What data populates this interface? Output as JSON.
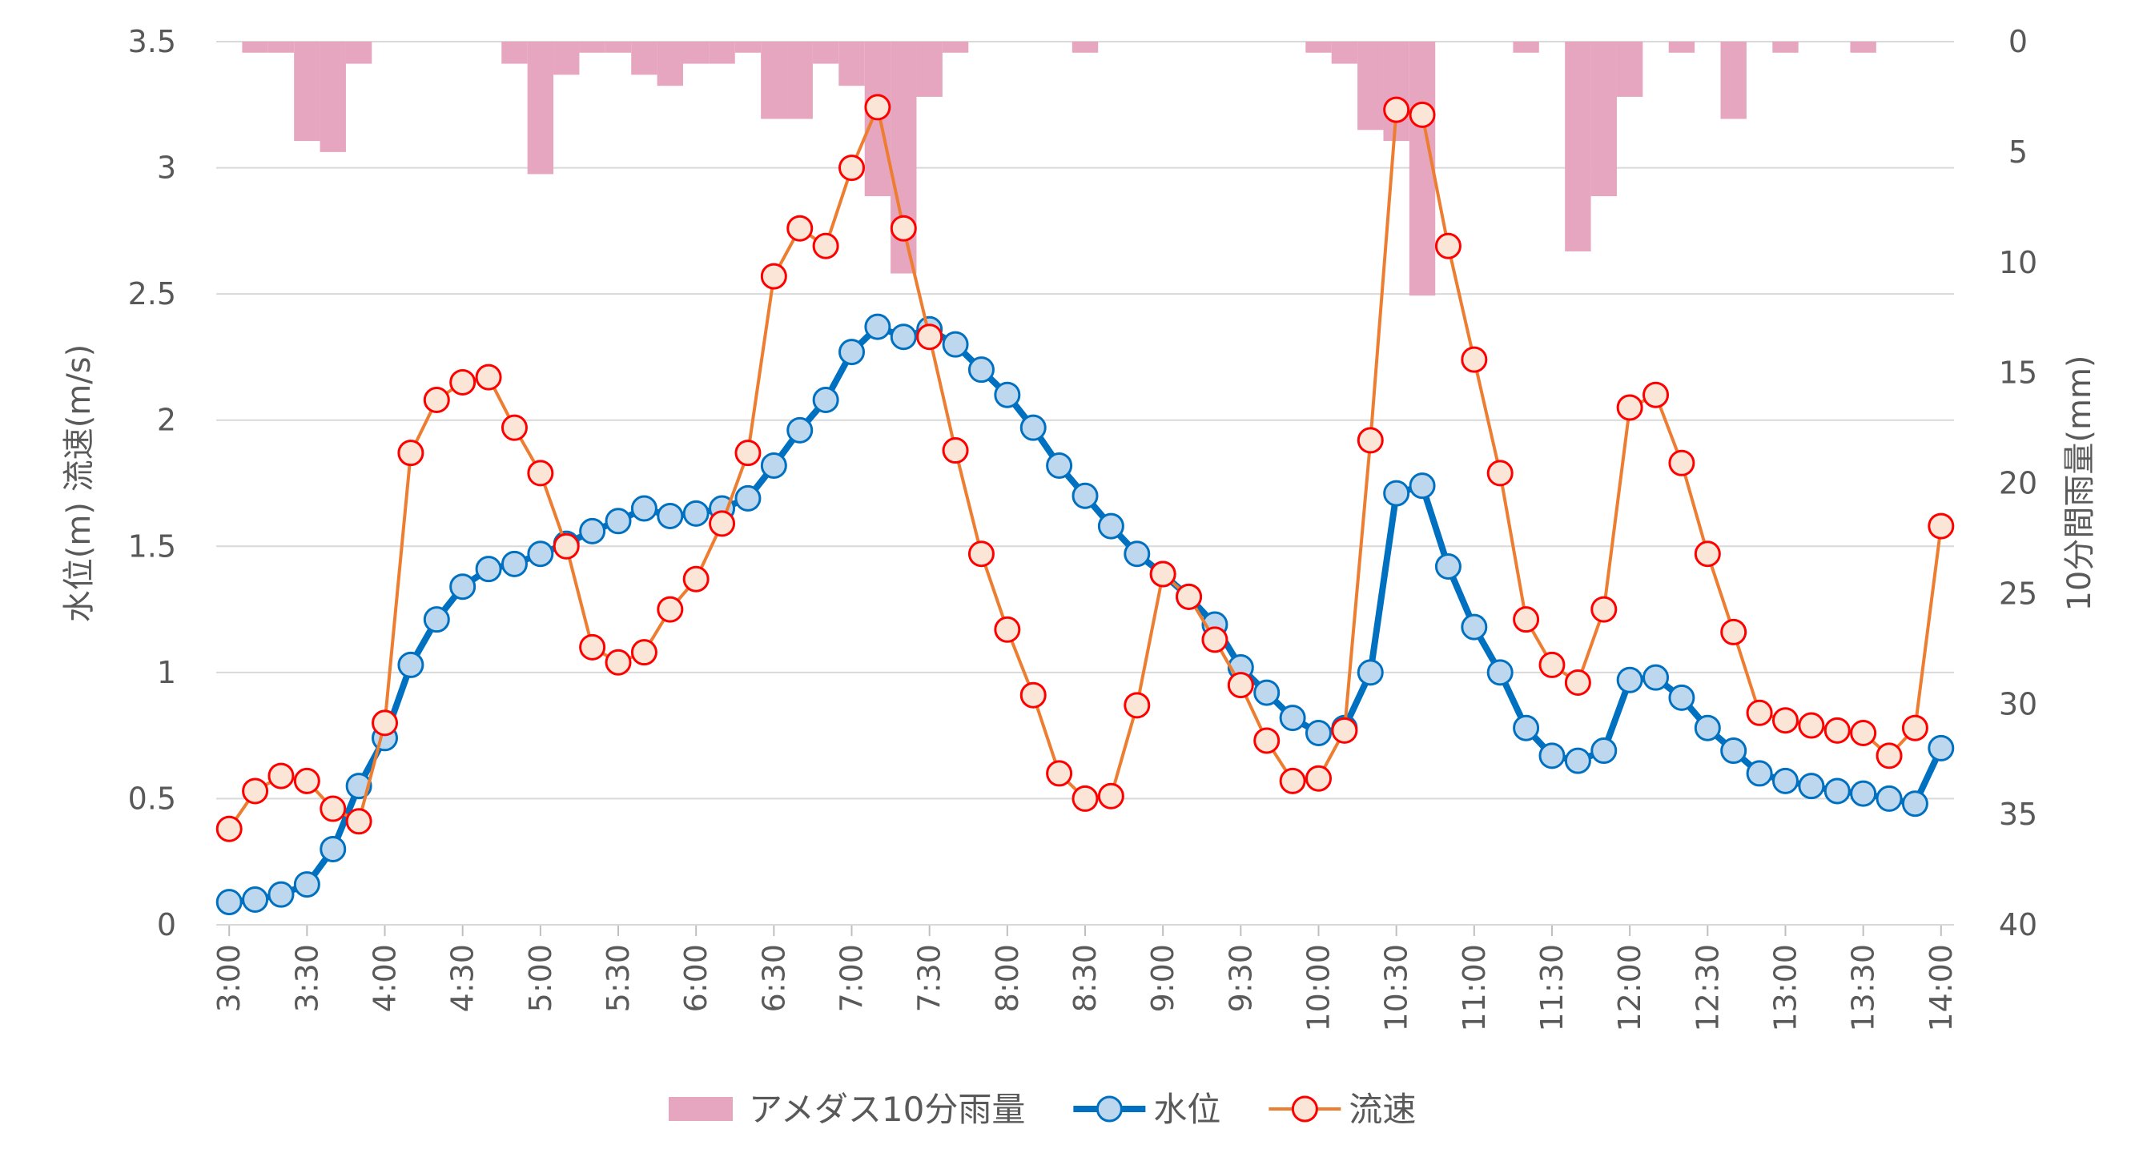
{
  "chart_data": {
    "type": "line",
    "x": [
      "3:00",
      "3:10",
      "3:20",
      "3:30",
      "3:40",
      "3:50",
      "4:00",
      "4:10",
      "4:20",
      "4:30",
      "4:40",
      "4:50",
      "5:00",
      "5:10",
      "5:20",
      "5:30",
      "5:40",
      "5:50",
      "6:00",
      "6:10",
      "6:20",
      "6:30",
      "6:40",
      "6:50",
      "7:00",
      "7:10",
      "7:20",
      "7:30",
      "7:40",
      "7:50",
      "8:00",
      "8:10",
      "8:20",
      "8:30",
      "8:40",
      "8:50",
      "9:00",
      "9:10",
      "9:20",
      "9:30",
      "9:40",
      "9:50",
      "10:00",
      "10:10",
      "10:20",
      "10:30",
      "10:40",
      "10:50",
      "11:00",
      "11:10",
      "11:20",
      "11:30",
      "11:40",
      "11:50",
      "12:00",
      "12:10",
      "12:20",
      "12:30",
      "12:40",
      "12:50",
      "13:00",
      "13:10",
      "13:20",
      "13:30",
      "13:40",
      "13:50",
      "14:00"
    ],
    "x_tick_labels": [
      "3:00",
      "3:30",
      "4:00",
      "4:30",
      "5:00",
      "5:30",
      "6:00",
      "6:30",
      "7:00",
      "7:30",
      "8:00",
      "8:30",
      "9:00",
      "9:30",
      "10:00",
      "10:30",
      "11:00",
      "11:30",
      "12:00",
      "12:30",
      "13:00",
      "13:30",
      "14:00"
    ],
    "y_left": {
      "label": "水位(m) 流速(m/s)",
      "ylim": [
        0,
        3.5
      ],
      "ticks": [
        "0",
        "0.5",
        "1",
        "1.5",
        "2",
        "2.5",
        "3",
        "3.5"
      ]
    },
    "y_right": {
      "label": "10分間雨量(mm)",
      "ylim": [
        0,
        40
      ],
      "reversed": true,
      "ticks": [
        "0",
        "5",
        "10",
        "15",
        "20",
        "25",
        "30",
        "35",
        "40"
      ]
    },
    "grid": "horizontal",
    "legend_position": "bottom",
    "series": [
      {
        "name": "アメダス10分雨量",
        "type": "bar",
        "axis": "right",
        "color": "#e6a6bf",
        "values": [
          0,
          0.5,
          0.5,
          4.5,
          5,
          1,
          0,
          0,
          0,
          0,
          0,
          1,
          6,
          1.5,
          0.5,
          0.5,
          1.5,
          2,
          1,
          1,
          0.5,
          3.5,
          3.5,
          1,
          2,
          7,
          10.5,
          2.5,
          0.5,
          0,
          0,
          0,
          0,
          0.5,
          0,
          0,
          0,
          0,
          0,
          0,
          0,
          0,
          0.5,
          1,
          4,
          4.5,
          11.5,
          0,
          0,
          0,
          0.5,
          0,
          9.5,
          7,
          2.5,
          0,
          0.5,
          0,
          3.5,
          0,
          0.5,
          0,
          0,
          0.5,
          0,
          0,
          0
        ]
      },
      {
        "name": "水位",
        "type": "line",
        "axis": "left",
        "color": "#0070c0",
        "marker_fill": "#bdd7ee",
        "values": [
          0.09,
          0.1,
          0.12,
          0.16,
          0.3,
          0.55,
          0.74,
          1.03,
          1.21,
          1.34,
          1.41,
          1.43,
          1.47,
          1.51,
          1.56,
          1.6,
          1.65,
          1.62,
          1.63,
          1.65,
          1.69,
          1.82,
          1.96,
          2.08,
          2.27,
          2.37,
          2.33,
          2.36,
          2.3,
          2.2,
          2.1,
          1.97,
          1.82,
          1.7,
          1.58,
          1.47,
          1.39,
          1.3,
          1.19,
          1.02,
          0.92,
          0.82,
          0.76,
          0.78,
          1.0,
          1.71,
          1.74,
          1.42,
          1.18,
          1.0,
          0.78,
          0.67,
          0.65,
          0.69,
          0.97,
          0.98,
          0.9,
          0.78,
          0.69,
          0.6,
          0.57,
          0.55,
          0.53,
          0.52,
          0.5,
          0.48,
          0.7
        ]
      },
      {
        "name": "流速",
        "type": "line",
        "axis": "left",
        "color": "#ed7d31",
        "marker_fill": "#fbe5d6",
        "marker_edge": "#ff0000",
        "values": [
          0.38,
          0.53,
          0.59,
          0.57,
          0.46,
          0.41,
          0.8,
          1.87,
          2.08,
          2.15,
          2.17,
          1.97,
          1.79,
          1.5,
          1.1,
          1.04,
          1.08,
          1.25,
          1.37,
          1.59,
          1.87,
          2.57,
          2.76,
          2.69,
          3.0,
          3.24,
          2.76,
          2.33,
          1.88,
          1.47,
          1.17,
          0.91,
          0.6,
          0.5,
          0.51,
          0.87,
          1.39,
          1.3,
          1.13,
          0.95,
          0.73,
          0.57,
          0.58,
          0.77,
          1.92,
          3.23,
          3.21,
          2.69,
          2.24,
          1.79,
          1.21,
          1.03,
          0.96,
          1.25,
          2.05,
          2.1,
          1.83,
          1.47,
          1.16,
          0.84,
          0.81,
          0.79,
          0.77,
          0.76,
          0.67,
          0.78,
          1.58
        ]
      }
    ]
  }
}
